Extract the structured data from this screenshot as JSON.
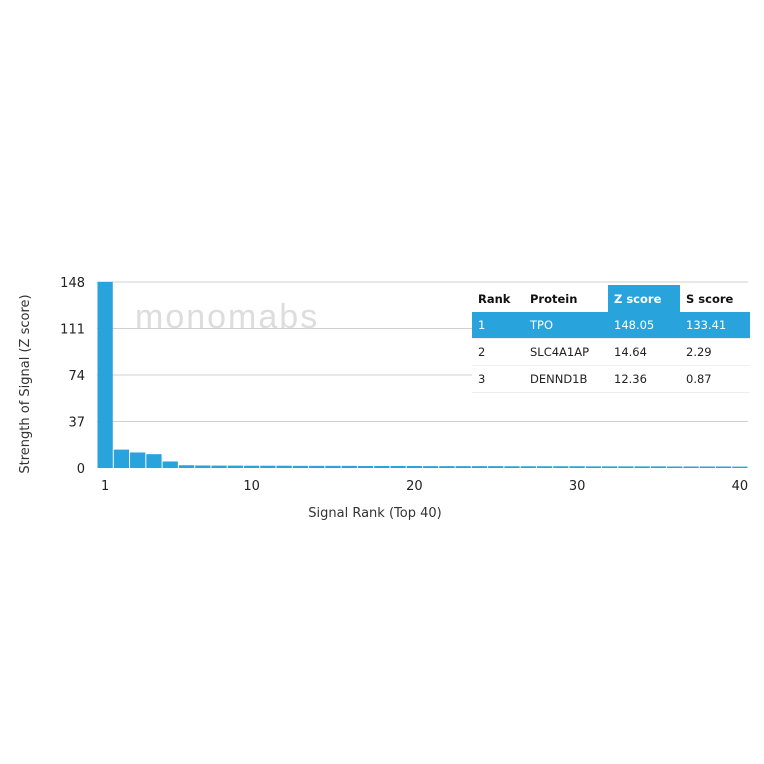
{
  "chart_data": {
    "type": "bar",
    "xlabel": "Signal Rank (Top 40)",
    "ylabel": "Strength of Signal (Z score)",
    "ylim": [
      0,
      148
    ],
    "yticks": [
      0,
      37,
      74,
      111,
      148
    ],
    "xticks": [
      1,
      10,
      20,
      30,
      40
    ],
    "grid": true,
    "bar_color": "#29a3dc",
    "x": [
      1,
      2,
      3,
      4,
      5,
      6,
      7,
      8,
      9,
      10,
      11,
      12,
      13,
      14,
      15,
      16,
      17,
      18,
      19,
      20,
      21,
      22,
      23,
      24,
      25,
      26,
      27,
      28,
      29,
      30,
      31,
      32,
      33,
      34,
      35,
      36,
      37,
      38,
      39,
      40
    ],
    "values": [
      148.05,
      14.64,
      12.36,
      11.0,
      5.2,
      2.2,
      2.0,
      1.9,
      1.9,
      1.8,
      1.8,
      1.8,
      1.7,
      1.7,
      1.7,
      1.7,
      1.6,
      1.6,
      1.6,
      1.6,
      1.5,
      1.5,
      1.5,
      1.5,
      1.5,
      1.4,
      1.4,
      1.4,
      1.4,
      1.4,
      1.3,
      1.3,
      1.3,
      1.3,
      1.3,
      1.2,
      1.2,
      1.2,
      1.2,
      1.1
    ]
  },
  "watermark": "monomabs",
  "table": {
    "headers": [
      "Rank",
      "Protein",
      "Z score",
      "S score"
    ],
    "rows": [
      [
        "1",
        "TPO",
        "148.05",
        "133.41"
      ],
      [
        "2",
        "SLC4A1AP",
        "14.64",
        "2.29"
      ],
      [
        "3",
        "DENND1B",
        "12.36",
        "0.87"
      ]
    ],
    "highlight_color": "#29a3dc"
  }
}
